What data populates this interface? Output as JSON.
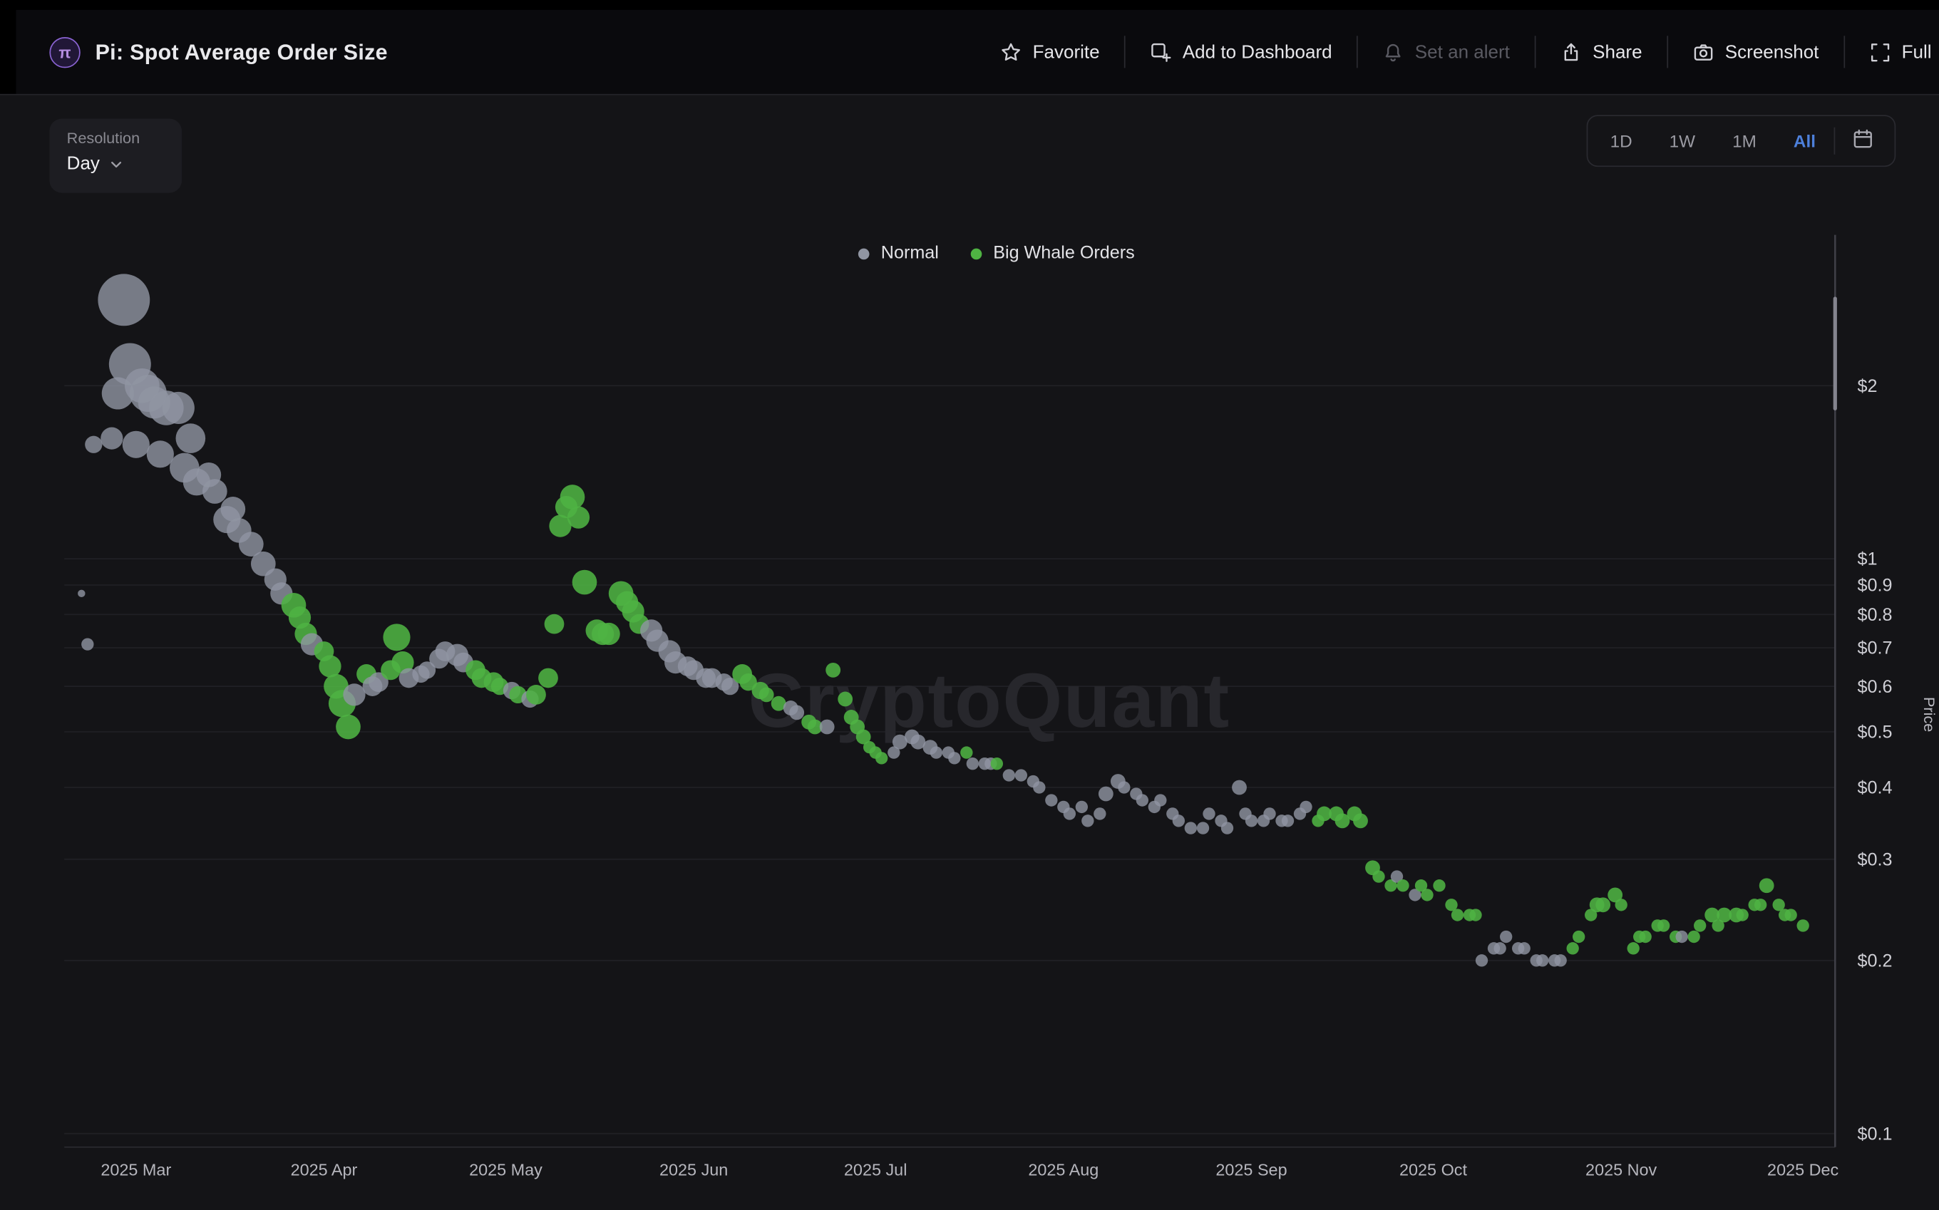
{
  "header": {
    "logo_symbol": "π",
    "title": "Pi: Spot Average Order Size",
    "actions": [
      {
        "label": "Favorite",
        "icon": "star-icon",
        "enabled": true
      },
      {
        "label": "Add to Dashboard",
        "icon": "add-to-dashboard-icon",
        "enabled": true
      },
      {
        "label": "Set an alert",
        "icon": "bell-icon",
        "enabled": false
      },
      {
        "label": "Share",
        "icon": "share-icon",
        "enabled": true
      },
      {
        "label": "Screenshot",
        "icon": "camera-icon",
        "enabled": true
      },
      {
        "label": "Full",
        "icon": "fullscreen-icon",
        "enabled": true
      }
    ]
  },
  "toolbar": {
    "resolution_label": "Resolution",
    "resolution_value": "Day",
    "range_buttons": [
      "1D",
      "1W",
      "1M",
      "All"
    ],
    "active_range": "All",
    "calendar_icon": "calendar-icon"
  },
  "legend": [
    {
      "label": "Normal",
      "color": "#9095a2"
    },
    {
      "label": "Big Whale Orders",
      "color": "#4fb343"
    }
  ],
  "watermark": "CryptoQuant",
  "chart_data": {
    "type": "scatter",
    "title": "Pi: Spot Average Order Size",
    "y_axis_label": "Price",
    "y_scale": "log",
    "y_ticks": [
      {
        "label": "$2",
        "value": 2
      },
      {
        "label": "$1",
        "value": 1
      },
      {
        "label": "$0.9",
        "value": 0.9
      },
      {
        "label": "$0.8",
        "value": 0.8
      },
      {
        "label": "$0.7",
        "value": 0.7
      },
      {
        "label": "$0.6",
        "value": 0.6
      },
      {
        "label": "$0.5",
        "value": 0.5
      },
      {
        "label": "$0.4",
        "value": 0.4
      },
      {
        "label": "$0.3",
        "value": 0.3
      },
      {
        "label": "$0.2",
        "value": 0.2
      },
      {
        "label": "$0.1",
        "value": 0.1
      }
    ],
    "x_ticks": [
      {
        "label": "2025 Mar",
        "day": 0
      },
      {
        "label": "2025 Apr",
        "day": 31
      },
      {
        "label": "2025 May",
        "day": 61
      },
      {
        "label": "2025 Jun",
        "day": 92
      },
      {
        "label": "2025 Jul",
        "day": 122
      },
      {
        "label": "2025 Aug",
        "day": 153
      },
      {
        "label": "2025 Sep",
        "day": 184
      },
      {
        "label": "2025 Oct",
        "day": 214
      },
      {
        "label": "2025 Nov",
        "day": 245
      },
      {
        "label": "2025 Dec",
        "day": 275
      }
    ],
    "x_unit": "days since 2025-03-01",
    "series": [
      {
        "name": "Normal",
        "color": "#9095a2"
      },
      {
        "name": "Big Whale Orders",
        "color": "#4fb343"
      }
    ],
    "points_format": [
      "day_offset",
      "price_usd",
      "bubble_radius_px",
      "series_key(n=Normal,w=Big Whale Orders)"
    ],
    "points": [
      [
        -9,
        0.87,
        3,
        "n"
      ],
      [
        -8,
        0.71,
        5,
        "n"
      ],
      [
        -7,
        1.58,
        7,
        "n"
      ],
      [
        -4,
        1.62,
        9,
        "n"
      ],
      [
        -3,
        1.94,
        13,
        "n"
      ],
      [
        -2,
        2.82,
        21,
        "n"
      ],
      [
        -1,
        2.18,
        17,
        "n"
      ],
      [
        0,
        1.58,
        11,
        "n"
      ],
      [
        1,
        2.0,
        14,
        "n"
      ],
      [
        2,
        1.94,
        15,
        "n"
      ],
      [
        3,
        1.87,
        13,
        "n"
      ],
      [
        4,
        1.52,
        11,
        "n"
      ],
      [
        5,
        1.83,
        14,
        "n"
      ],
      [
        7,
        1.83,
        13,
        "n"
      ],
      [
        8,
        1.44,
        12,
        "n"
      ],
      [
        9,
        1.62,
        12,
        "n"
      ],
      [
        10,
        1.36,
        11,
        "n"
      ],
      [
        12,
        1.4,
        10,
        "n"
      ],
      [
        13,
        1.31,
        10,
        "n"
      ],
      [
        15,
        1.17,
        11,
        "n"
      ],
      [
        16,
        1.22,
        10,
        "n"
      ],
      [
        17,
        1.12,
        10,
        "n"
      ],
      [
        19,
        1.06,
        10,
        "n"
      ],
      [
        21,
        0.98,
        10,
        "n"
      ],
      [
        23,
        0.92,
        9,
        "n"
      ],
      [
        24,
        0.87,
        9,
        "n"
      ],
      [
        26,
        0.83,
        10,
        "w"
      ],
      [
        27,
        0.79,
        9,
        "w"
      ],
      [
        28,
        0.74,
        9,
        "w"
      ],
      [
        29,
        0.71,
        9,
        "n"
      ],
      [
        31,
        0.69,
        8,
        "w"
      ],
      [
        32,
        0.65,
        9,
        "w"
      ],
      [
        33,
        0.6,
        10,
        "w"
      ],
      [
        34,
        0.56,
        11,
        "w"
      ],
      [
        35,
        0.51,
        10,
        "w"
      ],
      [
        36,
        0.58,
        9,
        "n"
      ],
      [
        38,
        0.63,
        8,
        "w"
      ],
      [
        39,
        0.6,
        8,
        "n"
      ],
      [
        40,
        0.61,
        8,
        "n"
      ],
      [
        42,
        0.64,
        8,
        "w"
      ],
      [
        43,
        0.73,
        11,
        "w"
      ],
      [
        44,
        0.66,
        9,
        "w"
      ],
      [
        45,
        0.62,
        8,
        "n"
      ],
      [
        47,
        0.63,
        7,
        "n"
      ],
      [
        48,
        0.64,
        7,
        "n"
      ],
      [
        50,
        0.67,
        8,
        "n"
      ],
      [
        51,
        0.69,
        8,
        "n"
      ],
      [
        53,
        0.68,
        9,
        "n"
      ],
      [
        54,
        0.66,
        8,
        "n"
      ],
      [
        56,
        0.64,
        8,
        "w"
      ],
      [
        57,
        0.62,
        8,
        "w"
      ],
      [
        59,
        0.61,
        8,
        "w"
      ],
      [
        60,
        0.6,
        7,
        "w"
      ],
      [
        62,
        0.59,
        7,
        "n"
      ],
      [
        63,
        0.58,
        7,
        "w"
      ],
      [
        65,
        0.57,
        7,
        "n"
      ],
      [
        66,
        0.58,
        8,
        "w"
      ],
      [
        68,
        0.62,
        8,
        "w"
      ],
      [
        69,
        0.77,
        8,
        "w"
      ],
      [
        70,
        1.14,
        9,
        "w"
      ],
      [
        71,
        1.23,
        9,
        "w"
      ],
      [
        72,
        1.28,
        10,
        "w"
      ],
      [
        73,
        1.18,
        9,
        "w"
      ],
      [
        74,
        0.91,
        10,
        "w"
      ],
      [
        76,
        0.75,
        9,
        "w"
      ],
      [
        77,
        0.74,
        9,
        "w"
      ],
      [
        78,
        0.74,
        9,
        "w"
      ],
      [
        80,
        0.87,
        10,
        "w"
      ],
      [
        81,
        0.84,
        9,
        "w"
      ],
      [
        82,
        0.81,
        9,
        "w"
      ],
      [
        83,
        0.77,
        8,
        "w"
      ],
      [
        85,
        0.75,
        9,
        "n"
      ],
      [
        86,
        0.72,
        9,
        "n"
      ],
      [
        88,
        0.69,
        9,
        "n"
      ],
      [
        89,
        0.66,
        9,
        "n"
      ],
      [
        91,
        0.65,
        8,
        "n"
      ],
      [
        92,
        0.64,
        8,
        "n"
      ],
      [
        94,
        0.62,
        8,
        "n"
      ],
      [
        95,
        0.62,
        8,
        "n"
      ],
      [
        97,
        0.61,
        7,
        "n"
      ],
      [
        98,
        0.6,
        7,
        "n"
      ],
      [
        100,
        0.63,
        8,
        "w"
      ],
      [
        101,
        0.61,
        7,
        "w"
      ],
      [
        103,
        0.59,
        7,
        "w"
      ],
      [
        104,
        0.58,
        6,
        "w"
      ],
      [
        106,
        0.56,
        6,
        "w"
      ],
      [
        108,
        0.55,
        6,
        "n"
      ],
      [
        109,
        0.54,
        6,
        "n"
      ],
      [
        111,
        0.52,
        6,
        "w"
      ],
      [
        112,
        0.51,
        6,
        "w"
      ],
      [
        114,
        0.51,
        6,
        "n"
      ],
      [
        115,
        0.64,
        6,
        "w"
      ],
      [
        117,
        0.57,
        6,
        "w"
      ],
      [
        118,
        0.53,
        6,
        "w"
      ],
      [
        119,
        0.51,
        6,
        "w"
      ],
      [
        120,
        0.49,
        6,
        "w"
      ],
      [
        121,
        0.47,
        5,
        "w"
      ],
      [
        122,
        0.46,
        5,
        "w"
      ],
      [
        123,
        0.45,
        5,
        "w"
      ],
      [
        125,
        0.46,
        5,
        "n"
      ],
      [
        126,
        0.48,
        6,
        "n"
      ],
      [
        128,
        0.49,
        6,
        "n"
      ],
      [
        129,
        0.48,
        6,
        "n"
      ],
      [
        131,
        0.47,
        6,
        "n"
      ],
      [
        132,
        0.46,
        5,
        "n"
      ],
      [
        134,
        0.46,
        5,
        "n"
      ],
      [
        135,
        0.45,
        5,
        "n"
      ],
      [
        137,
        0.46,
        5,
        "w"
      ],
      [
        138,
        0.44,
        5,
        "n"
      ],
      [
        140,
        0.44,
        5,
        "n"
      ],
      [
        141,
        0.44,
        5,
        "n"
      ],
      [
        142,
        0.44,
        5,
        "w"
      ],
      [
        144,
        0.42,
        5,
        "n"
      ],
      [
        146,
        0.42,
        5,
        "n"
      ],
      [
        148,
        0.41,
        5,
        "n"
      ],
      [
        149,
        0.4,
        5,
        "n"
      ],
      [
        151,
        0.38,
        5,
        "n"
      ],
      [
        153,
        0.37,
        5,
        "n"
      ],
      [
        154,
        0.36,
        5,
        "n"
      ],
      [
        156,
        0.37,
        5,
        "n"
      ],
      [
        157,
        0.35,
        5,
        "n"
      ],
      [
        159,
        0.36,
        5,
        "n"
      ],
      [
        160,
        0.39,
        6,
        "n"
      ],
      [
        162,
        0.41,
        6,
        "n"
      ],
      [
        163,
        0.4,
        5,
        "n"
      ],
      [
        165,
        0.39,
        5,
        "n"
      ],
      [
        166,
        0.38,
        5,
        "n"
      ],
      [
        168,
        0.37,
        5,
        "n"
      ],
      [
        169,
        0.38,
        5,
        "n"
      ],
      [
        171,
        0.36,
        5,
        "n"
      ],
      [
        172,
        0.35,
        5,
        "n"
      ],
      [
        174,
        0.34,
        5,
        "n"
      ],
      [
        176,
        0.34,
        5,
        "n"
      ],
      [
        177,
        0.36,
        5,
        "n"
      ],
      [
        179,
        0.35,
        5,
        "n"
      ],
      [
        180,
        0.34,
        5,
        "n"
      ],
      [
        182,
        0.4,
        6,
        "n"
      ],
      [
        183,
        0.36,
        5,
        "n"
      ],
      [
        184,
        0.35,
        5,
        "n"
      ],
      [
        186,
        0.35,
        5,
        "n"
      ],
      [
        187,
        0.36,
        5,
        "n"
      ],
      [
        189,
        0.35,
        5,
        "n"
      ],
      [
        190,
        0.35,
        5,
        "n"
      ],
      [
        192,
        0.36,
        5,
        "n"
      ],
      [
        193,
        0.37,
        5,
        "n"
      ],
      [
        195,
        0.35,
        5,
        "w"
      ],
      [
        196,
        0.36,
        6,
        "w"
      ],
      [
        198,
        0.36,
        6,
        "w"
      ],
      [
        199,
        0.35,
        6,
        "w"
      ],
      [
        201,
        0.36,
        6,
        "w"
      ],
      [
        202,
        0.35,
        6,
        "w"
      ],
      [
        204,
        0.29,
        6,
        "w"
      ],
      [
        205,
        0.28,
        5,
        "w"
      ],
      [
        207,
        0.27,
        5,
        "w"
      ],
      [
        208,
        0.28,
        5,
        "n"
      ],
      [
        209,
        0.27,
        5,
        "w"
      ],
      [
        211,
        0.26,
        5,
        "n"
      ],
      [
        212,
        0.27,
        5,
        "w"
      ],
      [
        213,
        0.26,
        5,
        "w"
      ],
      [
        215,
        0.27,
        5,
        "w"
      ],
      [
        217,
        0.25,
        5,
        "w"
      ],
      [
        218,
        0.24,
        5,
        "w"
      ],
      [
        220,
        0.24,
        5,
        "w"
      ],
      [
        221,
        0.24,
        5,
        "w"
      ],
      [
        222,
        0.2,
        5,
        "n"
      ],
      [
        224,
        0.21,
        5,
        "n"
      ],
      [
        225,
        0.21,
        5,
        "n"
      ],
      [
        226,
        0.22,
        5,
        "n"
      ],
      [
        228,
        0.21,
        5,
        "n"
      ],
      [
        229,
        0.21,
        5,
        "n"
      ],
      [
        231,
        0.2,
        5,
        "n"
      ],
      [
        232,
        0.2,
        5,
        "n"
      ],
      [
        234,
        0.2,
        5,
        "n"
      ],
      [
        235,
        0.2,
        5,
        "n"
      ],
      [
        237,
        0.21,
        5,
        "w"
      ],
      [
        238,
        0.22,
        5,
        "w"
      ],
      [
        240,
        0.24,
        5,
        "w"
      ],
      [
        241,
        0.25,
        6,
        "w"
      ],
      [
        242,
        0.25,
        6,
        "w"
      ],
      [
        244,
        0.26,
        6,
        "w"
      ],
      [
        245,
        0.25,
        5,
        "w"
      ],
      [
        247,
        0.21,
        5,
        "w"
      ],
      [
        248,
        0.22,
        5,
        "w"
      ],
      [
        249,
        0.22,
        5,
        "w"
      ],
      [
        251,
        0.23,
        5,
        "w"
      ],
      [
        252,
        0.23,
        5,
        "w"
      ],
      [
        254,
        0.22,
        5,
        "w"
      ],
      [
        255,
        0.22,
        5,
        "n"
      ],
      [
        257,
        0.22,
        5,
        "w"
      ],
      [
        258,
        0.23,
        5,
        "w"
      ],
      [
        260,
        0.24,
        6,
        "w"
      ],
      [
        261,
        0.23,
        5,
        "w"
      ],
      [
        262,
        0.24,
        6,
        "w"
      ],
      [
        264,
        0.24,
        6,
        "w"
      ],
      [
        265,
        0.24,
        5,
        "w"
      ],
      [
        267,
        0.25,
        5,
        "w"
      ],
      [
        268,
        0.25,
        5,
        "w"
      ],
      [
        269,
        0.27,
        6,
        "w"
      ],
      [
        271,
        0.25,
        5,
        "w"
      ],
      [
        272,
        0.24,
        5,
        "w"
      ],
      [
        273,
        0.24,
        5,
        "w"
      ],
      [
        275,
        0.23,
        5,
        "w"
      ]
    ]
  }
}
